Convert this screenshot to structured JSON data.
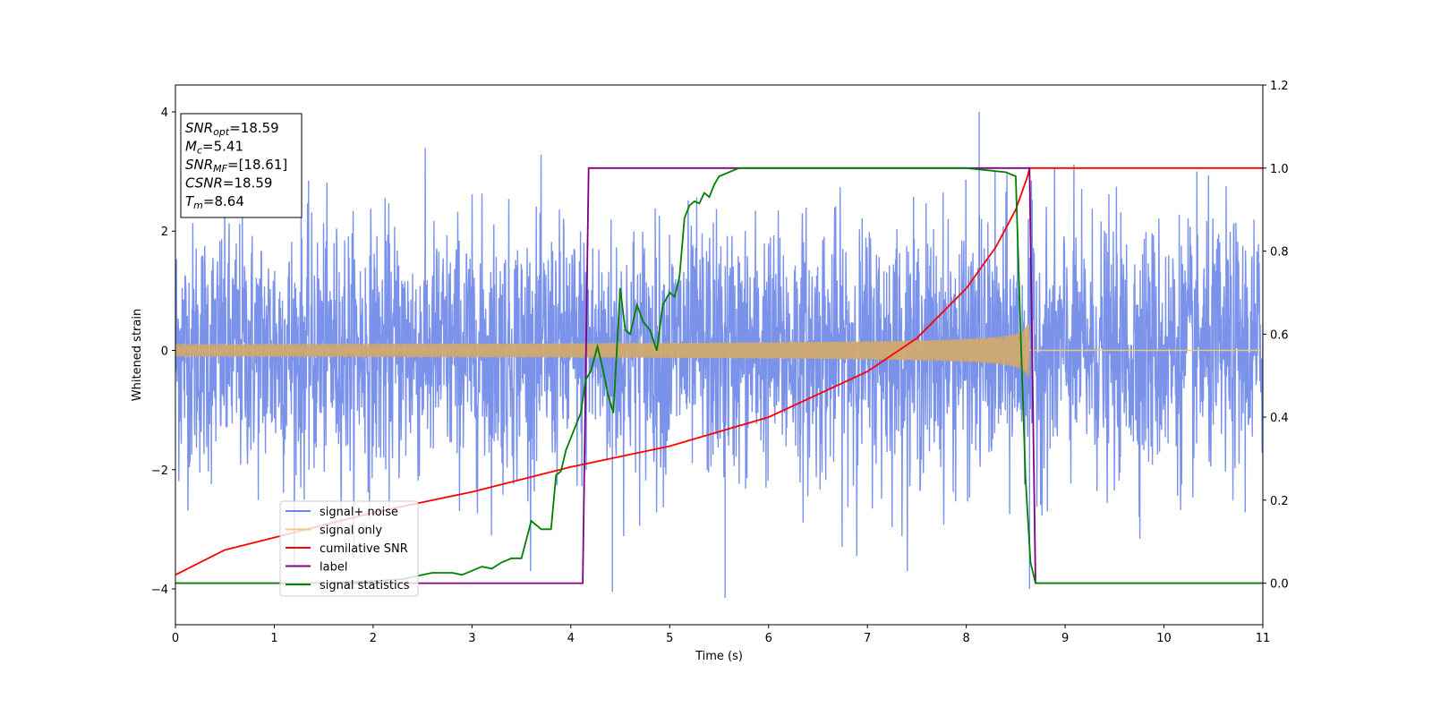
{
  "chart_data": {
    "type": "line",
    "xlabel": "Time (s)",
    "ylabel": "Whitened strain",
    "xlim": [
      0,
      11
    ],
    "ylim_left": [
      -4.6,
      4.45
    ],
    "ylim_right": [
      -0.1,
      1.2
    ],
    "x_ticks": [
      "0",
      "1",
      "2",
      "3",
      "4",
      "5",
      "6",
      "7",
      "8",
      "9",
      "10",
      "11"
    ],
    "y_left_ticks": [
      "−4",
      "−2",
      "0",
      "2",
      "4"
    ],
    "y_right_ticks": [
      "0.0",
      "0.2",
      "0.4",
      "0.6",
      "0.8",
      "1.0",
      "1.2"
    ],
    "grid": false,
    "legend_placement": "lower-left",
    "annotation": [
      {
        "main": "SNR",
        "sub": "opt",
        "value": "=18.59"
      },
      {
        "main": "M",
        "sub": "c",
        "value": "=5.41"
      },
      {
        "main": "SNR",
        "sub": "MF",
        "value": "=[18.61]"
      },
      {
        "main": "CSNR",
        "sub": "",
        "value": "=18.59"
      },
      {
        "main": "T",
        "sub": "m",
        "value": "=8.64"
      }
    ],
    "series": [
      {
        "name": "signal+ noise",
        "color": "#6b86e8",
        "axis": "left",
        "noise_std": 1.05,
        "peak_max": 4.0,
        "peak_min": -4.15
      },
      {
        "name": "signal only",
        "color": "#f5c77a",
        "axis": "left",
        "t_merger": 8.64,
        "amp_start": 0.1,
        "amp_merger": 1.1
      },
      {
        "name": "cumilative SNR",
        "color": "#ff0000",
        "axis": "right",
        "x": [
          0,
          0.5,
          1,
          2,
          3,
          4,
          5,
          6,
          7,
          7.5,
          8,
          8.3,
          8.5,
          8.62,
          8.64,
          11
        ],
        "y": [
          0.02,
          0.08,
          0.11,
          0.17,
          0.22,
          0.28,
          0.33,
          0.4,
          0.51,
          0.59,
          0.71,
          0.81,
          0.9,
          0.98,
          1.0,
          1.0
        ]
      },
      {
        "name": "label",
        "color": "#800080",
        "axis": "right",
        "x": [
          0,
          4.12,
          4.18,
          8.64,
          8.7,
          11
        ],
        "y": [
          0,
          0,
          1,
          1,
          0,
          0
        ]
      },
      {
        "name": "signal statistics",
        "color": "#008000",
        "axis": "right",
        "x": [
          0,
          0.5,
          1,
          1.5,
          2,
          2.3,
          2.5,
          2.6,
          2.8,
          2.9,
          3.0,
          3.1,
          3.2,
          3.3,
          3.4,
          3.5,
          3.6,
          3.7,
          3.8,
          3.85,
          3.9,
          3.95,
          4.0,
          4.05,
          4.1,
          4.15,
          4.2,
          4.27,
          4.32,
          4.38,
          4.43,
          4.5,
          4.55,
          4.6,
          4.67,
          4.73,
          4.8,
          4.87,
          4.93,
          5.0,
          5.05,
          5.1,
          5.15,
          5.2,
          5.25,
          5.3,
          5.35,
          5.4,
          5.45,
          5.5,
          5.6,
          5.7,
          5.8,
          6.0,
          6.5,
          7.0,
          7.5,
          8.0,
          8.4,
          8.5,
          8.55,
          8.6,
          8.65,
          8.7,
          8.8,
          9.0,
          11
        ],
        "y": [
          0,
          0.0,
          0.0,
          0.0,
          0.005,
          0.01,
          0.02,
          0.025,
          0.025,
          0.02,
          0.03,
          0.04,
          0.035,
          0.05,
          0.06,
          0.06,
          0.15,
          0.13,
          0.13,
          0.26,
          0.27,
          0.32,
          0.35,
          0.38,
          0.41,
          0.49,
          0.51,
          0.57,
          0.52,
          0.45,
          0.41,
          0.71,
          0.61,
          0.6,
          0.67,
          0.63,
          0.61,
          0.56,
          0.67,
          0.7,
          0.69,
          0.74,
          0.88,
          0.91,
          0.92,
          0.915,
          0.94,
          0.93,
          0.96,
          0.98,
          0.99,
          1.0,
          1.0,
          1.0,
          1.0,
          1.0,
          1.0,
          1.0,
          0.99,
          0.98,
          0.6,
          0.25,
          0.05,
          0.0,
          0.0,
          0.0,
          0.0
        ]
      }
    ]
  }
}
